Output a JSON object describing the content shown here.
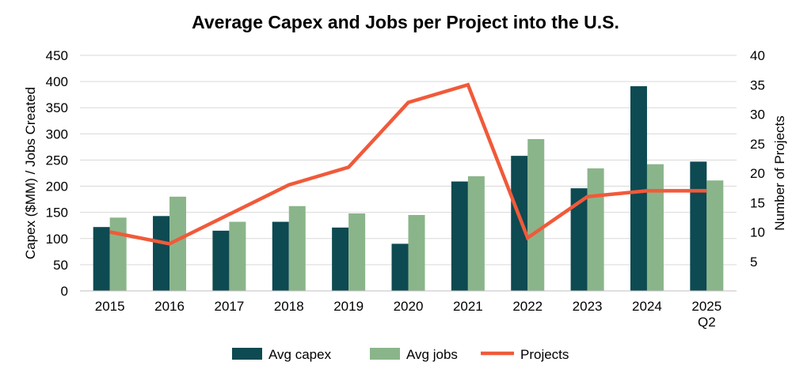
{
  "chart_data": {
    "type": "bar",
    "title": "Average Capex and Jobs per Project into the U.S.",
    "categories": [
      [
        "2015"
      ],
      [
        "2016"
      ],
      [
        "2017"
      ],
      [
        "2018"
      ],
      [
        "2019"
      ],
      [
        "2020"
      ],
      [
        "2021"
      ],
      [
        "2022"
      ],
      [
        "2023"
      ],
      [
        "2024"
      ],
      [
        "2025",
        "Q2"
      ]
    ],
    "ylabel": "Capex ($MM) / Jobs Created",
    "y2label": "Number of  Projects",
    "ylim": [
      0,
      450
    ],
    "y2lim": [
      0,
      40
    ],
    "yticks": [
      0,
      50,
      100,
      150,
      200,
      250,
      300,
      350,
      400,
      450
    ],
    "y2ticks": [
      5,
      10,
      15,
      20,
      25,
      30,
      35,
      40
    ],
    "grid": true,
    "legend_position": "bottom",
    "series": [
      {
        "name": "Avg capex",
        "type": "bar",
        "axis": "left",
        "color": "#0d4a52",
        "values": [
          122,
          143,
          115,
          132,
          121,
          90,
          209,
          258,
          196,
          391,
          247
        ]
      },
      {
        "name": "Avg jobs",
        "type": "bar",
        "axis": "left",
        "color": "#8ab58a",
        "values": [
          140,
          180,
          132,
          162,
          148,
          145,
          219,
          290,
          234,
          242,
          211
        ]
      },
      {
        "name": "Projects",
        "type": "line",
        "axis": "right",
        "color": "#f05a3a",
        "values": [
          10,
          8,
          13,
          18,
          21,
          32,
          35,
          9,
          16,
          17,
          17
        ]
      }
    ]
  }
}
